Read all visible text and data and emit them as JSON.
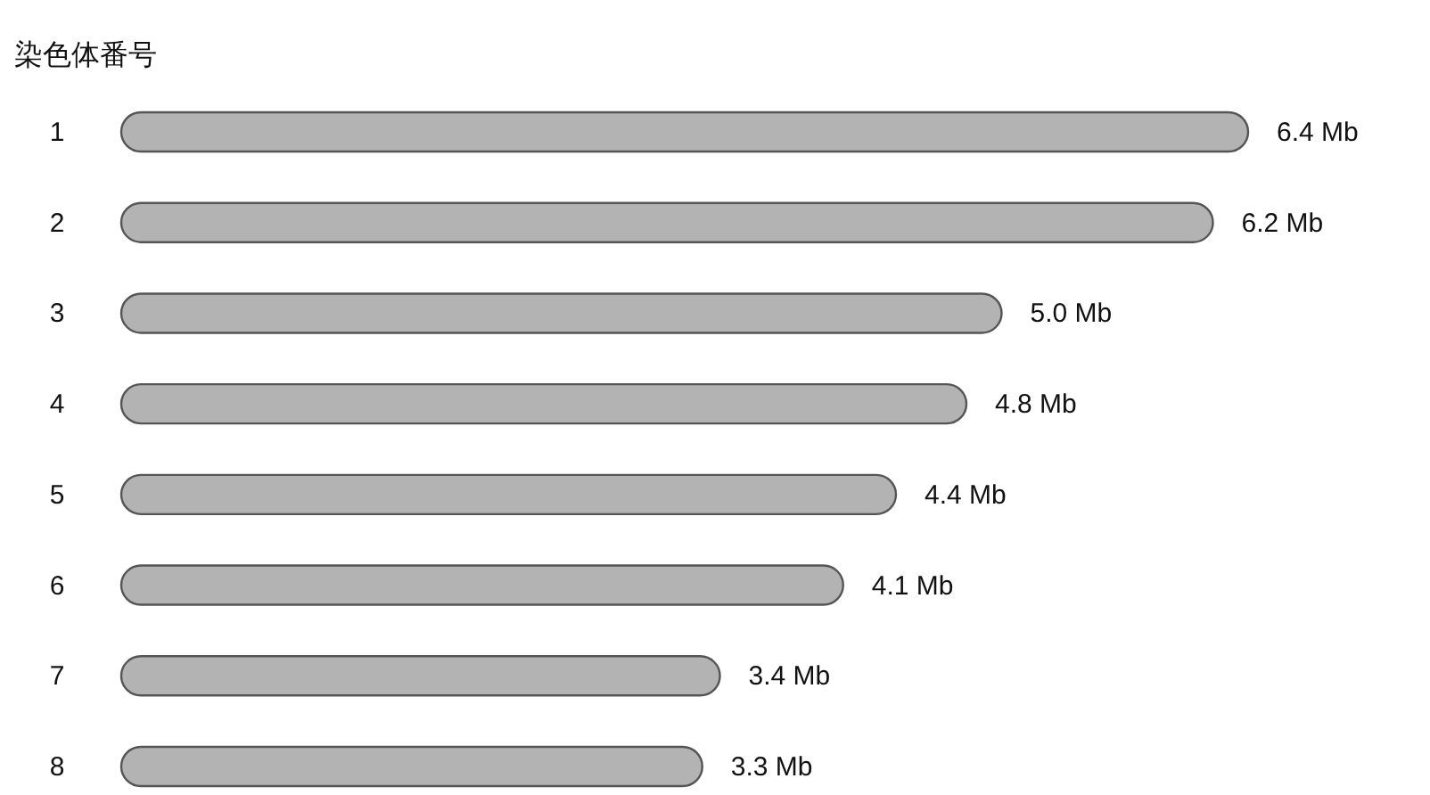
{
  "chart_data": {
    "type": "bar",
    "orientation": "horizontal",
    "ylabel": "染色体番号",
    "categories": [
      "1",
      "2",
      "3",
      "4",
      "5",
      "6",
      "7",
      "8"
    ],
    "values": [
      6.4,
      6.2,
      5.0,
      4.8,
      4.4,
      4.1,
      3.4,
      3.3
    ],
    "value_labels": [
      "6.4 Mb",
      "6.2 Mb",
      "5.0 Mb",
      "4.8 Mb",
      "4.4 Mb",
      "4.1 Mb",
      "3.4 Mb",
      "3.3 Mb"
    ],
    "color": "#b3b3b3"
  }
}
